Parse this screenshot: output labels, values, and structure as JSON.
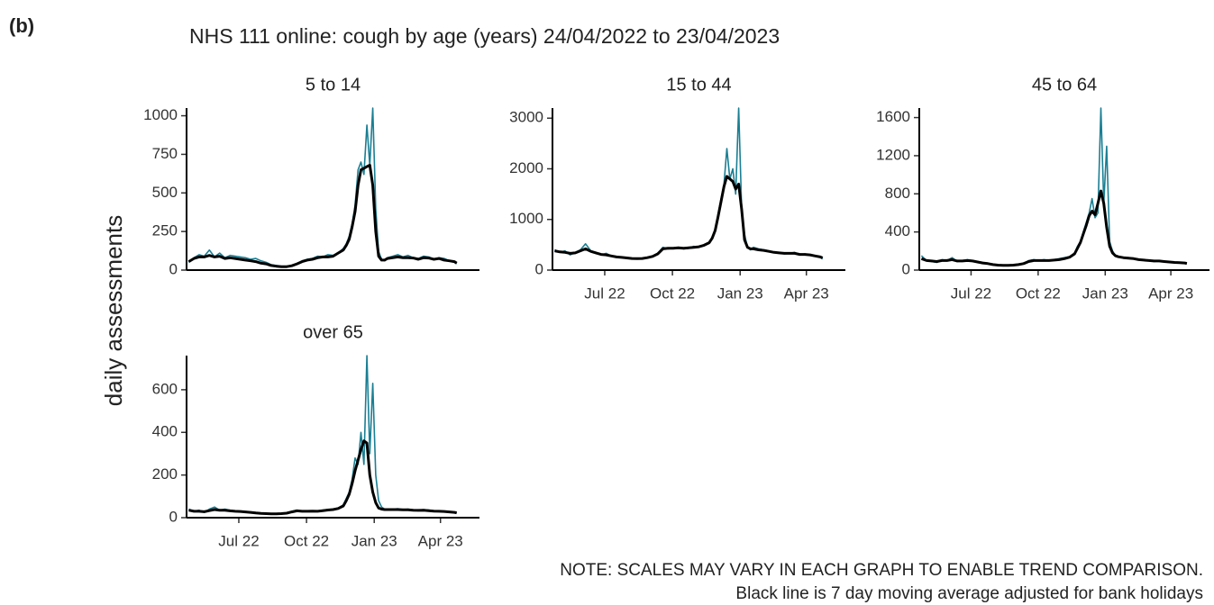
{
  "panel_label": "(b)",
  "title": "NHS 111 online: cough by age (years) 24/04/2022 to 23/04/2023",
  "y_label": "daily assessments",
  "notes": [
    "NOTE: SCALES MAY VARY IN EACH GRAPH TO ENABLE TREND COMPARISON.",
    "Black line is 7 day moving average adjusted for bank holidays"
  ],
  "chart_data": [
    {
      "type": "line",
      "title": "5 to 14",
      "x": [
        0,
        7,
        14,
        21,
        28,
        35,
        42,
        49,
        56,
        63,
        70,
        77,
        84,
        91,
        98,
        105,
        112,
        119,
        126,
        133,
        140,
        147,
        154,
        161,
        168,
        175,
        182,
        189,
        196,
        203,
        210,
        214,
        218,
        222,
        226,
        230,
        234,
        238,
        242,
        246,
        250,
        254,
        258,
        262,
        266,
        270,
        277,
        284,
        291,
        298,
        305,
        312,
        319,
        326,
        333,
        340,
        347,
        354,
        361,
        364
      ],
      "series": [
        {
          "color": "#1a7f93",
          "values": [
            50,
            80,
            100,
            90,
            130,
            85,
            110,
            80,
            95,
            90,
            85,
            80,
            70,
            75,
            60,
            50,
            35,
            30,
            25,
            25,
            30,
            40,
            60,
            70,
            75,
            90,
            85,
            100,
            95,
            110,
            140,
            170,
            220,
            300,
            420,
            650,
            700,
            620,
            940,
            680,
            1050,
            400,
            120,
            70,
            60,
            80,
            90,
            100,
            85,
            95,
            80,
            75,
            90,
            85,
            70,
            80,
            75,
            60,
            50,
            40
          ]
        },
        {
          "color": "#000000",
          "values": [
            55,
            75,
            85,
            85,
            95,
            85,
            90,
            75,
            80,
            75,
            70,
            65,
            60,
            55,
            45,
            40,
            30,
            25,
            22,
            22,
            28,
            40,
            55,
            65,
            70,
            80,
            85,
            85,
            90,
            110,
            130,
            160,
            200,
            280,
            380,
            550,
            650,
            660,
            670,
            680,
            550,
            250,
            90,
            65,
            65,
            75,
            80,
            85,
            80,
            80,
            78,
            70,
            80,
            78,
            70,
            75,
            65,
            60,
            55,
            45
          ]
        }
      ],
      "xlim": [
        -3,
        395
      ],
      "ylim": [
        0,
        1050
      ],
      "yticks": [
        0,
        250,
        500,
        750,
        1000
      ]
    },
    {
      "type": "line",
      "title": "15 to 44",
      "x": [
        0,
        7,
        14,
        21,
        28,
        35,
        42,
        49,
        56,
        63,
        70,
        77,
        84,
        91,
        98,
        105,
        112,
        119,
        126,
        133,
        140,
        147,
        154,
        161,
        168,
        175,
        182,
        189,
        196,
        203,
        210,
        214,
        218,
        222,
        226,
        230,
        234,
        238,
        242,
        246,
        250,
        254,
        258,
        262,
        266,
        270,
        277,
        284,
        291,
        298,
        305,
        312,
        319,
        326,
        333,
        340,
        347,
        354,
        361,
        364
      ],
      "series": [
        {
          "color": "#1a7f93",
          "values": [
            400,
            350,
            380,
            300,
            350,
            400,
            520,
            380,
            350,
            300,
            330,
            280,
            250,
            260,
            240,
            230,
            220,
            230,
            250,
            280,
            330,
            450,
            420,
            430,
            450,
            420,
            430,
            470,
            450,
            500,
            550,
            650,
            800,
            1100,
            1400,
            1700,
            2400,
            1800,
            2000,
            1500,
            3200,
            1200,
            700,
            450,
            400,
            450,
            420,
            400,
            380,
            350,
            350,
            320,
            330,
            350,
            300,
            320,
            300,
            280,
            250,
            220
          ]
        },
        {
          "color": "#000000",
          "values": [
            380,
            360,
            350,
            330,
            340,
            380,
            420,
            370,
            340,
            310,
            300,
            280,
            260,
            250,
            240,
            230,
            225,
            230,
            245,
            270,
            320,
            420,
            430,
            430,
            440,
            430,
            440,
            450,
            460,
            490,
            540,
            630,
            780,
            1050,
            1350,
            1650,
            1850,
            1800,
            1750,
            1600,
            1700,
            1200,
            600,
            450,
            420,
            420,
            400,
            390,
            370,
            350,
            340,
            330,
            330,
            330,
            310,
            310,
            300,
            280,
            260,
            240
          ]
        }
      ],
      "xlim": [
        -3,
        395
      ],
      "ylim": [
        0,
        3200
      ],
      "yticks": [
        0,
        1000,
        2000,
        3000
      ],
      "xticks": [
        {
          "value": 68,
          "label": "Jul 22"
        },
        {
          "value": 160,
          "label": "Oct 22"
        },
        {
          "value": 252,
          "label": "Jan 23"
        },
        {
          "value": 342,
          "label": "Apr 23"
        }
      ]
    },
    {
      "type": "line",
      "title": "45 to 64",
      "x": [
        0,
        7,
        14,
        21,
        28,
        35,
        42,
        49,
        56,
        63,
        70,
        77,
        84,
        91,
        98,
        105,
        112,
        119,
        126,
        133,
        140,
        147,
        154,
        161,
        168,
        175,
        182,
        189,
        196,
        203,
        210,
        214,
        218,
        222,
        226,
        230,
        234,
        238,
        242,
        246,
        250,
        254,
        258,
        262,
        266,
        270,
        277,
        284,
        291,
        298,
        305,
        312,
        319,
        326,
        333,
        340,
        347,
        354,
        361,
        364
      ],
      "series": [
        {
          "color": "#1a7f93",
          "values": [
            150,
            100,
            90,
            80,
            110,
            100,
            130,
            90,
            100,
            110,
            100,
            90,
            80,
            70,
            60,
            50,
            50,
            50,
            55,
            60,
            70,
            100,
            110,
            100,
            110,
            100,
            110,
            120,
            130,
            140,
            180,
            250,
            300,
            400,
            500,
            600,
            750,
            550,
            600,
            1700,
            700,
            1300,
            300,
            200,
            150,
            140,
            130,
            130,
            120,
            110,
            110,
            100,
            90,
            100,
            90,
            85,
            80,
            80,
            75,
            70
          ]
        },
        {
          "color": "#000000",
          "values": [
            120,
            100,
            95,
            90,
            100,
            100,
            110,
            95,
            95,
            100,
            95,
            85,
            75,
            68,
            58,
            52,
            50,
            50,
            52,
            58,
            68,
            90,
            100,
            100,
            100,
            100,
            105,
            110,
            120,
            135,
            170,
            230,
            290,
            380,
            470,
            570,
            620,
            580,
            700,
            830,
            700,
            450,
            250,
            180,
            150,
            140,
            130,
            125,
            120,
            110,
            105,
            100,
            95,
            95,
            90,
            85,
            80,
            78,
            75,
            70
          ]
        }
      ],
      "xlim": [
        -3,
        395
      ],
      "ylim": [
        0,
        1700
      ],
      "yticks": [
        0,
        400,
        800,
        1200,
        1600
      ],
      "xticks": [
        {
          "value": 68,
          "label": "Jul 22"
        },
        {
          "value": 160,
          "label": "Oct 22"
        },
        {
          "value": 252,
          "label": "Jan 23"
        },
        {
          "value": 342,
          "label": "Apr 23"
        }
      ]
    },
    {
      "type": "line",
      "title": "over 65",
      "x": [
        0,
        7,
        14,
        21,
        28,
        35,
        42,
        49,
        56,
        63,
        70,
        77,
        84,
        91,
        98,
        105,
        112,
        119,
        126,
        133,
        140,
        147,
        154,
        161,
        168,
        175,
        182,
        189,
        196,
        203,
        210,
        214,
        218,
        222,
        226,
        230,
        234,
        238,
        242,
        246,
        250,
        254,
        258,
        262,
        266,
        270,
        277,
        284,
        291,
        298,
        305,
        312,
        319,
        326,
        333,
        340,
        347,
        354,
        361,
        364
      ],
      "series": [
        {
          "color": "#1a7f93",
          "values": [
            40,
            30,
            35,
            25,
            40,
            50,
            35,
            40,
            35,
            30,
            30,
            28,
            25,
            22,
            20,
            20,
            18,
            18,
            20,
            22,
            30,
            35,
            30,
            30,
            32,
            30,
            35,
            38,
            40,
            45,
            60,
            90,
            120,
            180,
            280,
            250,
            400,
            250,
            760,
            300,
            630,
            200,
            80,
            50,
            40,
            40,
            40,
            42,
            38,
            40,
            35,
            35,
            38,
            36,
            30,
            32,
            30,
            28,
            25,
            22
          ]
        },
        {
          "color": "#000000",
          "values": [
            35,
            30,
            30,
            28,
            33,
            38,
            35,
            35,
            32,
            30,
            29,
            27,
            25,
            22,
            20,
            19,
            18,
            18,
            19,
            21,
            27,
            32,
            30,
            30,
            31,
            30,
            33,
            36,
            38,
            43,
            55,
            80,
            110,
            160,
            220,
            270,
            320,
            360,
            350,
            200,
            120,
            70,
            45,
            40,
            38,
            38,
            38,
            38,
            37,
            37,
            35,
            34,
            35,
            33,
            31,
            30,
            29,
            27,
            25,
            23
          ]
        }
      ],
      "xlim": [
        -3,
        395
      ],
      "ylim": [
        0,
        760
      ],
      "yticks": [
        0,
        200,
        400,
        600
      ],
      "xticks": [
        {
          "value": 68,
          "label": "Jul 22"
        },
        {
          "value": 160,
          "label": "Oct 22"
        },
        {
          "value": 252,
          "label": "Jan 23"
        },
        {
          "value": 342,
          "label": "Apr 23"
        }
      ]
    }
  ]
}
